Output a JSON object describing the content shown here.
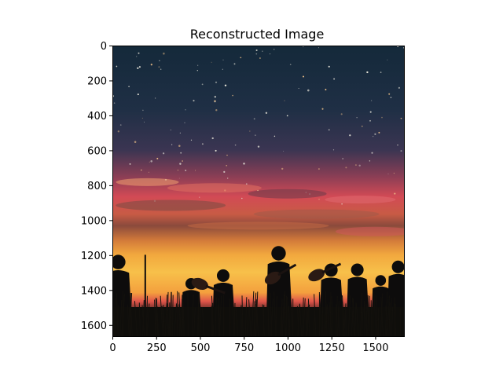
{
  "chart_data": {
    "type": "image",
    "title": "Reconstructed Image",
    "xlabel": "",
    "ylabel": "",
    "xlim": [
      0,
      1664
    ],
    "ylim": [
      1664,
      0
    ],
    "x_ticks": [
      0,
      250,
      500,
      750,
      1000,
      1250,
      1500
    ],
    "y_ticks": [
      0,
      200,
      400,
      600,
      800,
      1000,
      1200,
      1400,
      1600
    ],
    "grid": false,
    "image_content": "sunset sky with stars above silhouettes of people playing guitars in a grassy field",
    "colors": {
      "sky_top": "#142a3a",
      "sky_mid": "#3a3550",
      "sky_red": "#d8485a",
      "horizon_orange": "#f0a040",
      "horizon_yellow": "#f7c04a",
      "silhouette": "#0d0c0c"
    }
  }
}
